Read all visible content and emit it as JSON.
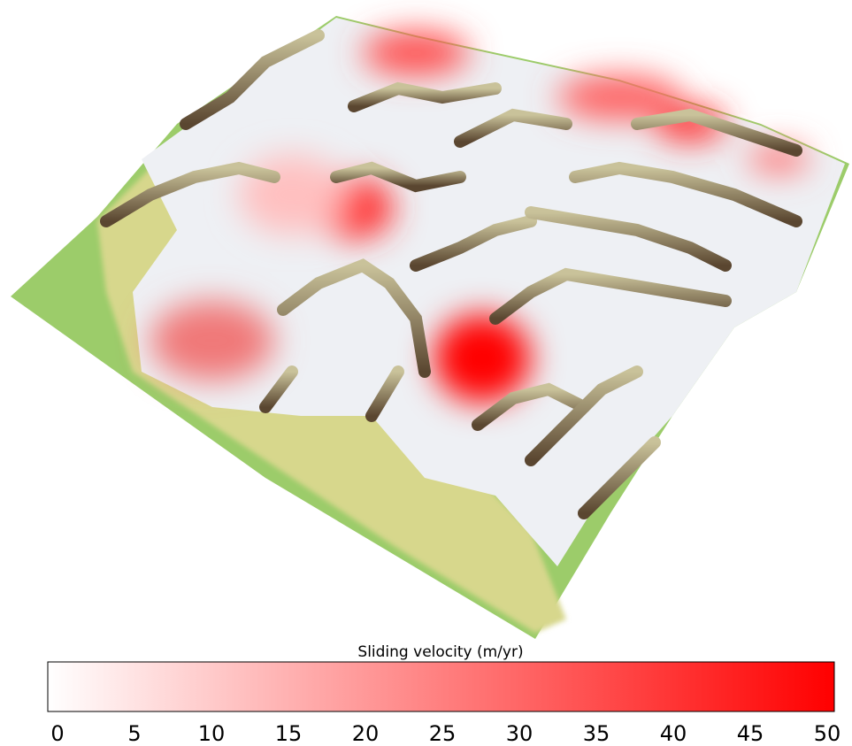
{
  "chart_data": {
    "type": "colorbar",
    "title": "Sliding velocity (m/yr)",
    "clim": [
      0,
      50
    ],
    "ticks": [
      0,
      5,
      10,
      15,
      20,
      25,
      30,
      35,
      40,
      45,
      50
    ],
    "colormap": [
      "#ffffff",
      "#ff0000"
    ]
  }
}
